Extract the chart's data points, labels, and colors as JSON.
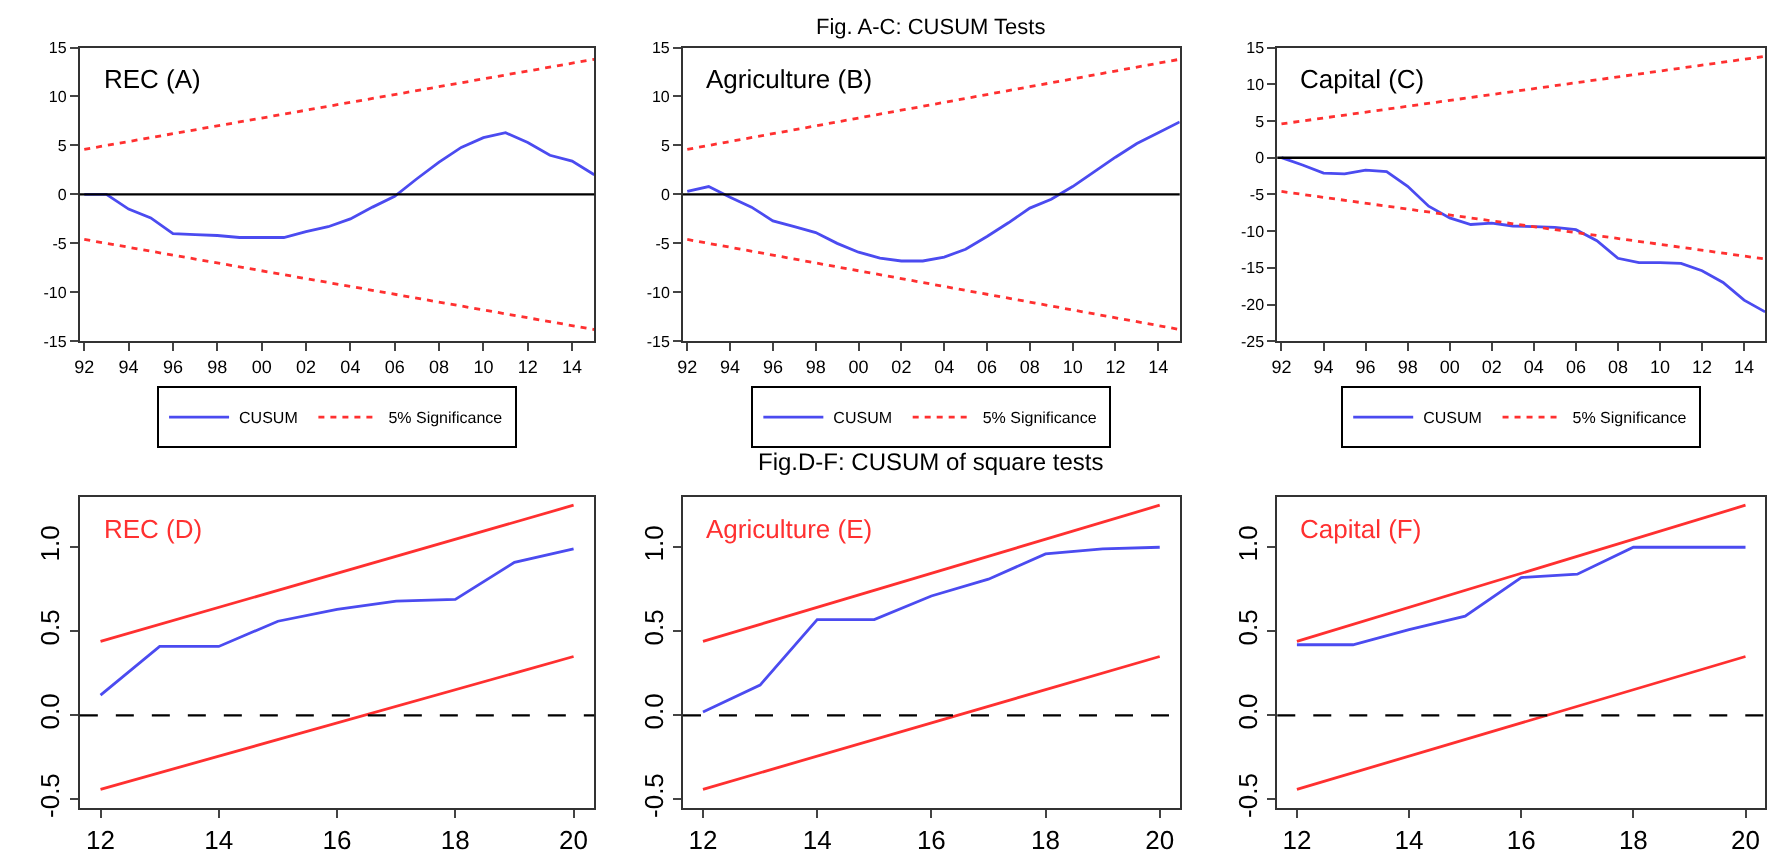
{
  "chart_data": [
    {
      "type": "line",
      "annotations": [
        "REC (A)"
      ],
      "x": [
        1992,
        1993,
        1994,
        1995,
        1996,
        1997,
        1998,
        1999,
        2000,
        2001,
        2002,
        2003,
        2004,
        2005,
        2006,
        2007,
        2008,
        2009,
        2010,
        2011,
        2012,
        2013,
        2014,
        2015
      ],
      "xlim": [
        1991.8,
        2015
      ],
      "xticks": [
        {
          "value": 1992,
          "label": "92"
        },
        {
          "value": 1994,
          "label": "94"
        },
        {
          "value": 1996,
          "label": "96"
        },
        {
          "value": 1998,
          "label": "98"
        },
        {
          "value": 2000,
          "label": "00"
        },
        {
          "value": 2002,
          "label": "02"
        },
        {
          "value": 2004,
          "label": "04"
        },
        {
          "value": 2006,
          "label": "06"
        },
        {
          "value": 2008,
          "label": "08"
        },
        {
          "value": 2010,
          "label": "10"
        },
        {
          "value": 2012,
          "label": "12"
        },
        {
          "value": 2014,
          "label": "14"
        }
      ],
      "ylim": [
        -15,
        15
      ],
      "yticks": [
        -15,
        -10,
        -5,
        0,
        5,
        10,
        15
      ],
      "legend": "bottom",
      "grid": false,
      "ref_lines": [
        {
          "axis": "y",
          "value": 0,
          "color": "#000000",
          "line_style": "solid"
        }
      ],
      "series": [
        {
          "name": "CUSUM",
          "color": "#4b4bf0",
          "line_style": "solid",
          "values": [
            0,
            0,
            -1.5,
            -2.4,
            -4,
            -4.1,
            -4.2,
            -4.4,
            -4.4,
            -4.4,
            -3.8,
            -3.3,
            -2.5,
            -1.3,
            -0.2,
            1.6,
            3.3,
            4.8,
            5.8,
            6.3,
            5.3,
            4,
            3.4,
            2
          ]
        },
        {
          "name": "5% Significance",
          "color": "#ff3030",
          "line_style": "dotted",
          "x": [
            1992,
            2015
          ],
          "values": [
            4.6,
            13.8
          ]
        },
        {
          "color": "#ff3030",
          "line_style": "dotted",
          "x": [
            1992,
            2015
          ],
          "values": [
            -4.6,
            -13.8
          ]
        }
      ]
    },
    {
      "type": "line",
      "title": "Fig. A-C: CUSUM Tests",
      "annotations": [
        "Agriculture (B)"
      ],
      "x": [
        1992,
        1993,
        1994,
        1995,
        1996,
        1997,
        1998,
        1999,
        2000,
        2001,
        2002,
        2003,
        2004,
        2005,
        2006,
        2007,
        2008,
        2009,
        2010,
        2011,
        2012,
        2013,
        2014,
        2015
      ],
      "xlim": [
        1991.8,
        2015
      ],
      "xticks": [
        {
          "value": 1992,
          "label": "92"
        },
        {
          "value": 1994,
          "label": "94"
        },
        {
          "value": 1996,
          "label": "96"
        },
        {
          "value": 1998,
          "label": "98"
        },
        {
          "value": 2000,
          "label": "00"
        },
        {
          "value": 2002,
          "label": "02"
        },
        {
          "value": 2004,
          "label": "04"
        },
        {
          "value": 2006,
          "label": "06"
        },
        {
          "value": 2008,
          "label": "08"
        },
        {
          "value": 2010,
          "label": "10"
        },
        {
          "value": 2012,
          "label": "12"
        },
        {
          "value": 2014,
          "label": "14"
        }
      ],
      "ylim": [
        -15,
        15
      ],
      "yticks": [
        -15,
        -10,
        -5,
        0,
        5,
        10,
        15
      ],
      "legend": "bottom",
      "grid": false,
      "ref_lines": [
        {
          "axis": "y",
          "value": 0,
          "color": "#000000",
          "line_style": "solid"
        }
      ],
      "series": [
        {
          "name": "CUSUM",
          "color": "#4b4bf0",
          "line_style": "solid",
          "values": [
            0.3,
            0.8,
            -0.3,
            -1.3,
            -2.7,
            -3.3,
            -3.9,
            -5,
            -5.9,
            -6.5,
            -6.8,
            -6.8,
            -6.4,
            -5.6,
            -4.3,
            -2.9,
            -1.4,
            -0.5,
            0.8,
            2.3,
            3.8,
            5.2,
            6.3,
            7.4
          ]
        },
        {
          "name": "5% Significance",
          "color": "#ff3030",
          "line_style": "dotted",
          "x": [
            1992,
            2015
          ],
          "values": [
            4.6,
            13.8
          ]
        },
        {
          "color": "#ff3030",
          "line_style": "dotted",
          "x": [
            1992,
            2015
          ],
          "values": [
            -4.6,
            -13.8
          ]
        }
      ]
    },
    {
      "type": "line",
      "annotations": [
        "Capital (C)"
      ],
      "x": [
        1992,
        1993,
        1994,
        1995,
        1996,
        1997,
        1998,
        1999,
        2000,
        2001,
        2002,
        2003,
        2004,
        2005,
        2006,
        2007,
        2008,
        2009,
        2010,
        2011,
        2012,
        2013,
        2014,
        2015
      ],
      "xlim": [
        1991.8,
        2015
      ],
      "xticks": [
        {
          "value": 1992,
          "label": "92"
        },
        {
          "value": 1994,
          "label": "94"
        },
        {
          "value": 1996,
          "label": "96"
        },
        {
          "value": 1998,
          "label": "98"
        },
        {
          "value": 2000,
          "label": "00"
        },
        {
          "value": 2002,
          "label": "02"
        },
        {
          "value": 2004,
          "label": "04"
        },
        {
          "value": 2006,
          "label": "06"
        },
        {
          "value": 2008,
          "label": "08"
        },
        {
          "value": 2010,
          "label": "10"
        },
        {
          "value": 2012,
          "label": "12"
        },
        {
          "value": 2014,
          "label": "14"
        }
      ],
      "ylim": [
        -25,
        15
      ],
      "yticks": [
        -25,
        -20,
        -15,
        -10,
        -5,
        0,
        5,
        10,
        15
      ],
      "legend": "bottom",
      "grid": false,
      "ref_lines": [
        {
          "axis": "y",
          "value": 0,
          "color": "#000000",
          "line_style": "solid"
        }
      ],
      "series": [
        {
          "name": "CUSUM",
          "color": "#4b4bf0",
          "line_style": "solid",
          "values": [
            0,
            -1,
            -2.1,
            -2.2,
            -1.7,
            -1.9,
            -3.9,
            -6.6,
            -8.2,
            -9.1,
            -8.9,
            -9.3,
            -9.4,
            -9.5,
            -9.8,
            -11.3,
            -13.7,
            -14.3,
            -14.3,
            -14.4,
            -15.4,
            -17,
            -19.4,
            -21
          ]
        },
        {
          "name": "5% Significance",
          "color": "#ff3030",
          "line_style": "dotted",
          "x": [
            1992,
            2015
          ],
          "values": [
            4.6,
            13.8
          ]
        },
        {
          "color": "#ff3030",
          "line_style": "dotted",
          "x": [
            1992,
            2015
          ],
          "values": [
            -4.6,
            -13.8
          ]
        }
      ]
    },
    {
      "type": "line",
      "annotations": [
        "REC (D)"
      ],
      "x": [
        12,
        13,
        14,
        15,
        16,
        17,
        18,
        19,
        20
      ],
      "xlim": [
        11.65,
        20.35
      ],
      "xticks": [
        12,
        14,
        16,
        18,
        20
      ],
      "ylim": [
        -0.55,
        1.3
      ],
      "yticks": [
        {
          "value": -0.5,
          "label": "-0.5"
        },
        {
          "value": 0,
          "label": "0.0"
        },
        {
          "value": 0.5,
          "label": "0.5"
        },
        {
          "value": 1,
          "label": "1.0"
        }
      ],
      "legend": false,
      "grid": false,
      "ref_lines": [
        {
          "axis": "y",
          "value": 0,
          "color": "#000000",
          "line_style": "dashed"
        }
      ],
      "series": [
        {
          "color": "#4b4bf0",
          "line_style": "solid",
          "values": [
            0.12,
            0.41,
            0.41,
            0.56,
            0.63,
            0.68,
            0.69,
            0.91,
            0.99
          ]
        },
        {
          "color": "#ff3030",
          "line_style": "solid",
          "x": [
            12,
            20
          ],
          "values": [
            0.44,
            1.25
          ]
        },
        {
          "color": "#ff3030",
          "line_style": "solid",
          "x": [
            12,
            20
          ],
          "values": [
            -0.44,
            0.35
          ]
        }
      ]
    },
    {
      "type": "line",
      "title": "Fig.D-F: CUSUM of square tests",
      "annotations": [
        "Agriculture (E)"
      ],
      "x": [
        12,
        13,
        14,
        15,
        16,
        17,
        18,
        19,
        20
      ],
      "xlim": [
        11.65,
        20.35
      ],
      "xticks": [
        12,
        14,
        16,
        18,
        20
      ],
      "ylim": [
        -0.55,
        1.3
      ],
      "yticks": [
        {
          "value": -0.5,
          "label": "-0.5"
        },
        {
          "value": 0,
          "label": "0.0"
        },
        {
          "value": 0.5,
          "label": "0.5"
        },
        {
          "value": 1,
          "label": "1.0"
        }
      ],
      "legend": false,
      "grid": false,
      "ref_lines": [
        {
          "axis": "y",
          "value": 0,
          "color": "#000000",
          "line_style": "dashed"
        }
      ],
      "series": [
        {
          "color": "#4b4bf0",
          "line_style": "solid",
          "values": [
            0.02,
            0.18,
            0.57,
            0.57,
            0.71,
            0.81,
            0.96,
            0.99,
            1
          ]
        },
        {
          "color": "#ff3030",
          "line_style": "solid",
          "x": [
            12,
            20
          ],
          "values": [
            0.44,
            1.25
          ]
        },
        {
          "color": "#ff3030",
          "line_style": "solid",
          "x": [
            12,
            20
          ],
          "values": [
            -0.44,
            0.35
          ]
        }
      ]
    },
    {
      "type": "line",
      "annotations": [
        "Capital (F)"
      ],
      "x": [
        12,
        13,
        14,
        15,
        16,
        17,
        18,
        19,
        20
      ],
      "xlim": [
        11.65,
        20.35
      ],
      "xticks": [
        12,
        14,
        16,
        18,
        20
      ],
      "ylim": [
        -0.55,
        1.3
      ],
      "yticks": [
        {
          "value": -0.5,
          "label": "-0.5"
        },
        {
          "value": 0,
          "label": "0.0"
        },
        {
          "value": 0.5,
          "label": "0.5"
        },
        {
          "value": 1,
          "label": "1.0"
        }
      ],
      "legend": false,
      "grid": false,
      "ref_lines": [
        {
          "axis": "y",
          "value": 0,
          "color": "#000000",
          "line_style": "dashed"
        }
      ],
      "series": [
        {
          "color": "#4b4bf0",
          "line_style": "solid",
          "values": [
            0.42,
            0.42,
            0.51,
            0.59,
            0.82,
            0.84,
            1,
            1,
            1
          ]
        },
        {
          "color": "#ff3030",
          "line_style": "solid",
          "x": [
            12,
            20
          ],
          "values": [
            0.44,
            1.25
          ]
        },
        {
          "color": "#ff3030",
          "line_style": "solid",
          "x": [
            12,
            20
          ],
          "values": [
            -0.44,
            0.35
          ]
        }
      ]
    }
  ]
}
